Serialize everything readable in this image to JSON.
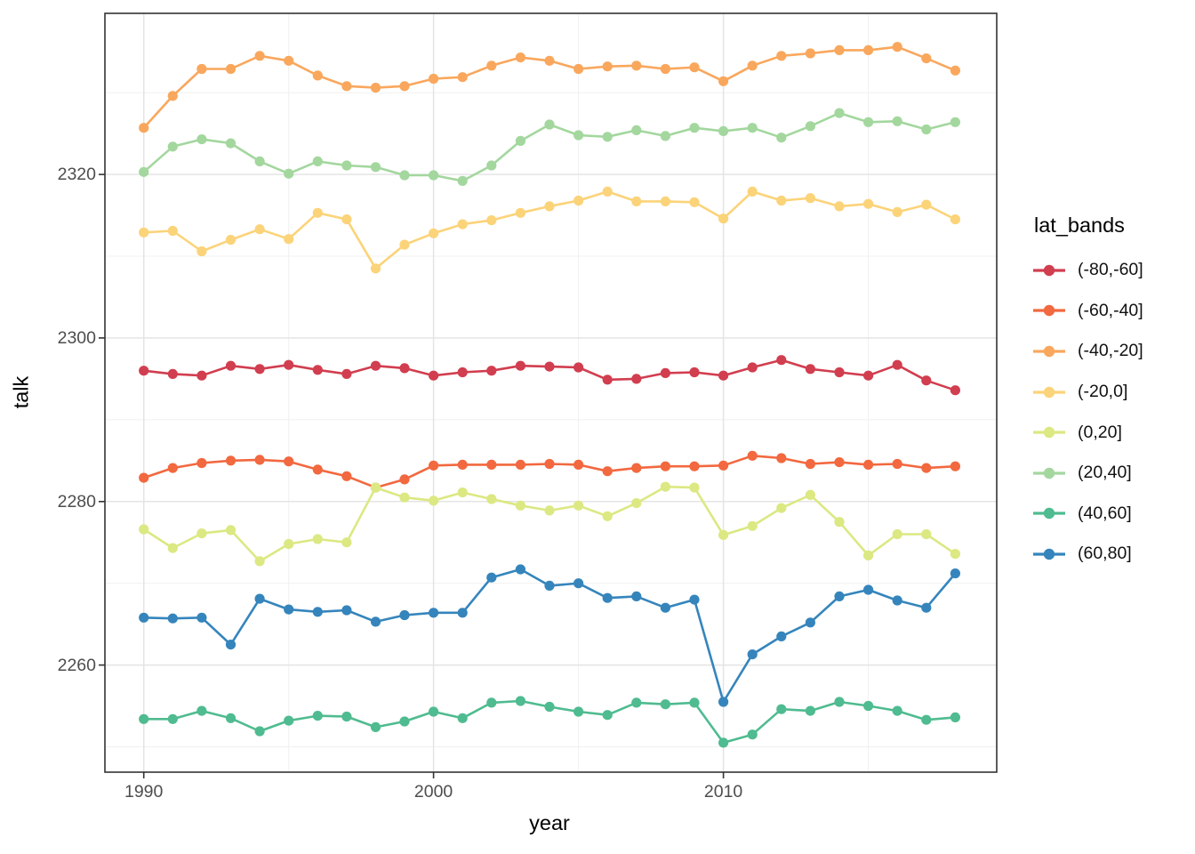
{
  "axes": {
    "x": {
      "title": "year",
      "ticks": [
        1990,
        2000,
        2010
      ],
      "minor_ticks": [
        1995,
        2005,
        2015
      ]
    },
    "y": {
      "title": "talk",
      "ticks": [
        2260,
        2280,
        2300,
        2320
      ],
      "minor_ticks": [
        2250,
        2270,
        2290,
        2310,
        2330
      ]
    }
  },
  "legend": {
    "title": "lat_bands",
    "position": "right"
  },
  "style": {
    "background": "#ffffff",
    "panel_border": "#333333",
    "grid_major": "#e4e4e4",
    "grid_minor": "#f0f0f0",
    "tick_color": "#333333",
    "tick_label_color": "#4d4d4d"
  },
  "chart_data": {
    "type": "line",
    "title": "",
    "xlabel": "year",
    "ylabel": "talk",
    "legend_title": "lat_bands",
    "legend_position": "right",
    "grid": "on",
    "marker": "point",
    "xlim": [
      1988.66,
      2019.43
    ],
    "ylim": [
      2246.9,
      2339.7
    ],
    "x": [
      1990,
      1991,
      1992,
      1993,
      1994,
      1995,
      1996,
      1997,
      1998,
      1999,
      2000,
      2001,
      2002,
      2003,
      2004,
      2005,
      2006,
      2007,
      2008,
      2009,
      2010,
      2011,
      2012,
      2013,
      2014,
      2015,
      2016,
      2017,
      2018
    ],
    "series": [
      {
        "name": "(-80,-60]",
        "color": "#D13E4F",
        "values": [
          2296.0,
          2295.6,
          2295.4,
          2296.6,
          2296.2,
          2296.7,
          2296.1,
          2295.6,
          2296.6,
          2296.3,
          2295.4,
          2295.8,
          2296.0,
          2296.6,
          2296.5,
          2296.4,
          2294.9,
          2295.0,
          2295.7,
          2295.8,
          2295.4,
          2296.4,
          2297.3,
          2296.2,
          2295.8,
          2295.4,
          2296.7,
          2294.8,
          2293.6
        ]
      },
      {
        "name": "(-60,-40]",
        "color": "#F2683F",
        "values": [
          2282.9,
          2284.1,
          2284.7,
          2285.0,
          2285.1,
          2284.9,
          2283.9,
          2283.1,
          2281.7,
          2282.7,
          2284.4,
          2284.5,
          2284.5,
          2284.5,
          2284.6,
          2284.5,
          2283.7,
          2284.1,
          2284.3,
          2284.3,
          2284.4,
          2285.6,
          2285.3,
          2284.6,
          2284.8,
          2284.5,
          2284.6,
          2284.1,
          2284.3
        ]
      },
      {
        "name": "(-40,-20]",
        "color": "#F9A75D",
        "values": [
          2325.7,
          2329.6,
          2332.9,
          2332.9,
          2334.5,
          2333.9,
          2332.1,
          2330.8,
          2330.6,
          2330.8,
          2331.7,
          2331.9,
          2333.3,
          2334.3,
          2333.9,
          2332.9,
          2333.2,
          2333.3,
          2332.9,
          2333.1,
          2331.4,
          2333.3,
          2334.5,
          2334.8,
          2335.2,
          2335.2,
          2335.6,
          2334.2,
          2332.7
        ]
      },
      {
        "name": "(-20,0]",
        "color": "#FBD379",
        "values": [
          2312.9,
          2313.1,
          2310.6,
          2312.0,
          2313.3,
          2312.1,
          2315.3,
          2314.5,
          2308.5,
          2311.4,
          2312.8,
          2313.9,
          2314.4,
          2315.3,
          2316.1,
          2316.8,
          2317.9,
          2316.7,
          2316.7,
          2316.6,
          2314.6,
          2317.9,
          2316.8,
          2317.1,
          2316.1,
          2316.4,
          2315.4,
          2316.3,
          2314.5
        ]
      },
      {
        "name": "(0,20]",
        "color": "#DCE882",
        "values": [
          2276.6,
          2274.3,
          2276.1,
          2276.5,
          2272.7,
          2274.8,
          2275.4,
          2275.0,
          2281.7,
          2280.5,
          2280.1,
          2281.1,
          2280.3,
          2279.5,
          2278.9,
          2279.5,
          2278.2,
          2279.8,
          2281.8,
          2281.7,
          2275.9,
          2277.0,
          2279.2,
          2280.8,
          2277.5,
          2273.4,
          2276.0,
          2276.0,
          2273.6
        ]
      },
      {
        "name": "(20,40]",
        "color": "#A3D79E",
        "values": [
          2320.3,
          2323.4,
          2324.3,
          2323.8,
          2321.6,
          2320.1,
          2321.6,
          2321.1,
          2320.9,
          2319.9,
          2319.9,
          2319.2,
          2321.1,
          2324.1,
          2326.1,
          2324.8,
          2324.6,
          2325.4,
          2324.7,
          2325.7,
          2325.3,
          2325.7,
          2324.5,
          2325.9,
          2327.5,
          2326.4,
          2326.5,
          2325.5,
          2326.4
        ]
      },
      {
        "name": "(40,60]",
        "color": "#4FBB90",
        "values": [
          2253.4,
          2253.4,
          2254.4,
          2253.5,
          2251.9,
          2253.2,
          2253.8,
          2253.7,
          2252.4,
          2253.1,
          2254.3,
          2253.5,
          2255.4,
          2255.6,
          2254.9,
          2254.3,
          2253.9,
          2255.4,
          2255.2,
          2255.4,
          2250.5,
          2251.5,
          2254.6,
          2254.4,
          2255.5,
          2255.0,
          2254.4,
          2253.3,
          2253.6
        ]
      },
      {
        "name": "(60,80]",
        "color": "#3585BC",
        "values": [
          2265.8,
          2265.7,
          2265.8,
          2262.5,
          2268.1,
          2266.8,
          2266.5,
          2266.7,
          2265.3,
          2266.1,
          2266.4,
          2266.4,
          2270.7,
          2271.7,
          2269.7,
          2270.0,
          2268.2,
          2268.4,
          2267.0,
          2268.0,
          2255.5,
          2261.3,
          2263.5,
          2265.2,
          2268.4,
          2269.2,
          2267.9,
          2267.0,
          2271.2
        ]
      }
    ]
  }
}
